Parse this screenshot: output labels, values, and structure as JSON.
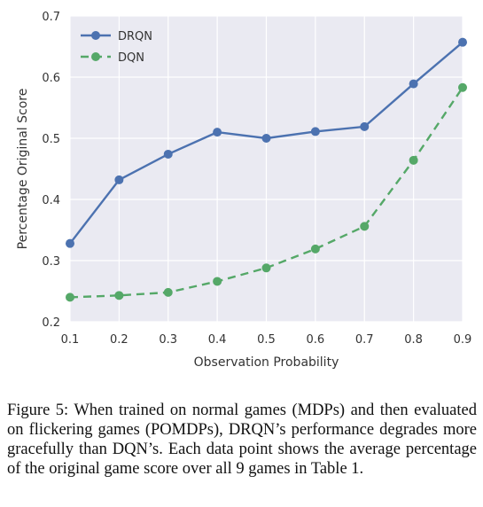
{
  "chart_data": {
    "type": "line",
    "x": [
      0.1,
      0.2,
      0.3,
      0.4,
      0.5,
      0.6,
      0.7,
      0.8,
      0.9
    ],
    "series": [
      {
        "name": "DRQN",
        "color": "#4c72b0",
        "style": "solid",
        "values": [
          0.328,
          0.432,
          0.474,
          0.51,
          0.5,
          0.511,
          0.519,
          0.589,
          0.657
        ]
      },
      {
        "name": "DQN",
        "color": "#55a868",
        "style": "dashed",
        "values": [
          0.24,
          0.243,
          0.248,
          0.266,
          0.288,
          0.319,
          0.356,
          0.464,
          0.583
        ]
      }
    ],
    "xlabel": "Observation Probability",
    "ylabel": "Percentage Original Score",
    "xlim": [
      0.1,
      0.9
    ],
    "ylim": [
      0.2,
      0.7
    ],
    "xticks": [
      "0.1",
      "0.2",
      "0.3",
      "0.4",
      "0.5",
      "0.6",
      "0.7",
      "0.8",
      "0.9"
    ],
    "yticks": [
      "0.2",
      "0.3",
      "0.4",
      "0.5",
      "0.6",
      "0.7"
    ],
    "grid": true,
    "legend": "top-left",
    "plot_background": "#eaeaf2"
  },
  "caption": "Figure 5: When trained on normal games (MDPs) and then evaluated on flickering games (POMDPs), DRQN’s performance degrades more gracefully than DQN’s. Each data point shows the average percentage of the original game score over all 9 games in Table 1."
}
